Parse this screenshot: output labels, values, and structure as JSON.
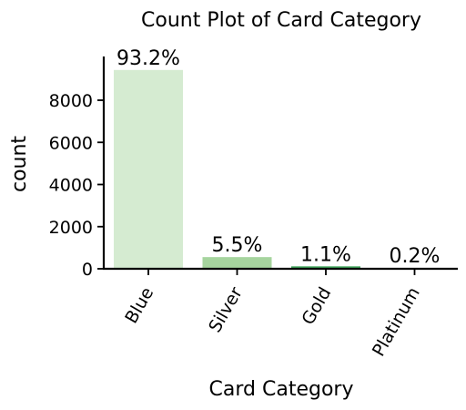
{
  "chart_data": {
    "type": "bar",
    "title": "Count Plot of Card Category",
    "xlabel": "Card Category",
    "ylabel": "count",
    "categories": [
      "Blue",
      "Silver",
      "Gold",
      "Platinum"
    ],
    "values": [
      9436,
      555,
      116,
      20
    ],
    "data_labels": [
      "93.2%",
      "5.5%",
      "1.1%",
      "0.2%"
    ],
    "colors": [
      "#d5ebd1",
      "#a6d49e",
      "#41a45b",
      "#0a6e2e"
    ],
    "yticks": [
      0,
      2000,
      4000,
      6000,
      8000
    ],
    "ylim": [
      0,
      9900
    ],
    "grid": false,
    "legend": "none"
  }
}
